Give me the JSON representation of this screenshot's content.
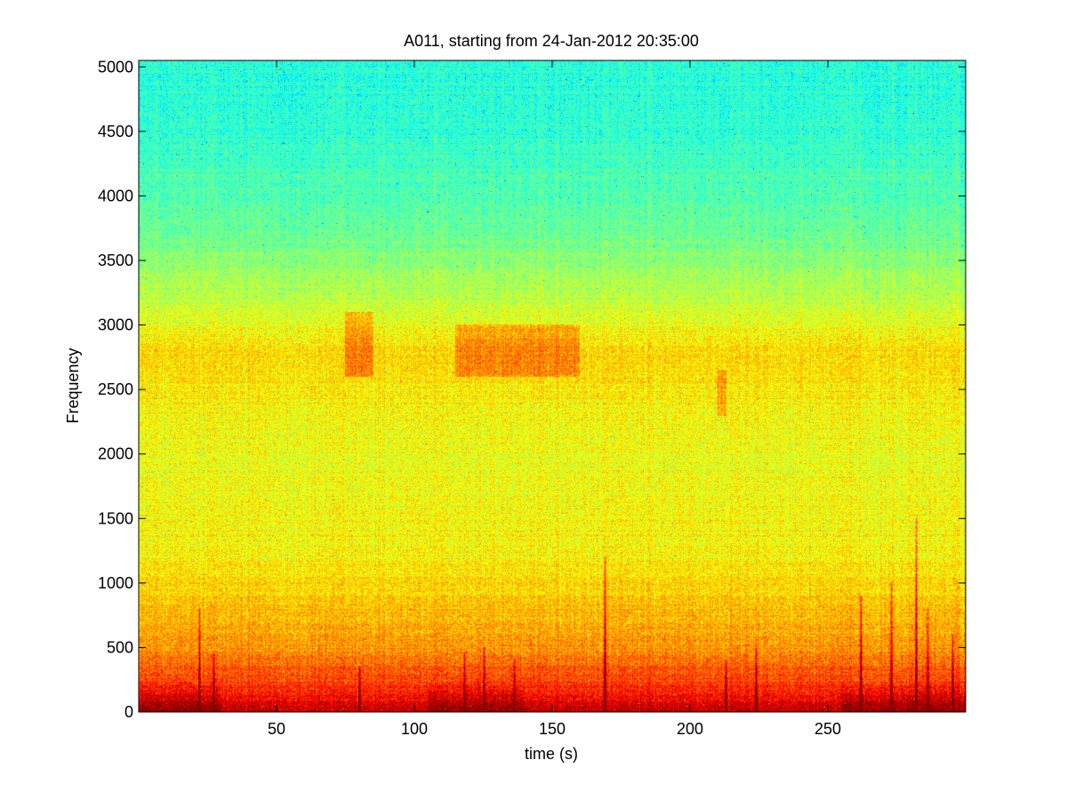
{
  "chart_data": {
    "type": "heatmap",
    "title": "A011, starting from 24-Jan-2012 20:35:00",
    "xlabel": "time (s)",
    "ylabel": "Frequency",
    "xlim": [
      0,
      300
    ],
    "ylim": [
      0,
      5050
    ],
    "xticks": [
      50,
      100,
      150,
      200,
      250
    ],
    "yticks": [
      0,
      500,
      1000,
      1500,
      2000,
      2500,
      3000,
      3500,
      4000,
      4500,
      5000
    ],
    "xtick_labels": [
      "50",
      "100",
      "150",
      "200",
      "250"
    ],
    "ytick_labels": [
      "0",
      "500",
      "1000",
      "1500",
      "2000",
      "2500",
      "3000",
      "3500",
      "4000",
      "4500",
      "5000"
    ],
    "grid": false,
    "colormap": "jet",
    "colorbar": false,
    "intensity_profile": [
      {
        "frequency": 0,
        "level": 0.95
      },
      {
        "frequency": 150,
        "level": 0.85
      },
      {
        "frequency": 450,
        "level": 0.74
      },
      {
        "frequency": 1200,
        "level": 0.63
      },
      {
        "frequency": 2000,
        "level": 0.61
      },
      {
        "frequency": 2800,
        "level": 0.66
      },
      {
        "frequency": 3200,
        "level": 0.56
      },
      {
        "frequency": 3700,
        "level": 0.48
      },
      {
        "frequency": 4500,
        "level": 0.42
      },
      {
        "frequency": 5050,
        "level": 0.41
      }
    ],
    "bright_regions": [
      {
        "time_range": [
          75,
          85
        ],
        "freq_range": [
          2600,
          3100
        ],
        "level": 0.72
      },
      {
        "time_range": [
          115,
          160
        ],
        "freq_range": [
          2600,
          3000
        ],
        "level": 0.71
      },
      {
        "time_range": [
          210,
          213
        ],
        "freq_range": [
          2300,
          2650
        ],
        "level": 0.7
      }
    ],
    "impulses": [
      {
        "time": 22,
        "top_frequency": 800,
        "level": 0.88
      },
      {
        "time": 27,
        "top_frequency": 450,
        "level": 0.86
      },
      {
        "time": 80,
        "top_frequency": 350,
        "level": 0.9
      },
      {
        "time": 118,
        "top_frequency": 450,
        "level": 0.87
      },
      {
        "time": 125,
        "top_frequency": 500,
        "level": 0.86
      },
      {
        "time": 136,
        "top_frequency": 400,
        "level": 0.85
      },
      {
        "time": 169,
        "top_frequency": 1200,
        "level": 0.9
      },
      {
        "time": 213,
        "top_frequency": 400,
        "level": 0.85
      },
      {
        "time": 224,
        "top_frequency": 500,
        "level": 0.87
      },
      {
        "time": 262,
        "top_frequency": 900,
        "level": 0.88
      },
      {
        "time": 273,
        "top_frequency": 1000,
        "level": 0.9
      },
      {
        "time": 282,
        "top_frequency": 1500,
        "level": 0.9
      },
      {
        "time": 286,
        "top_frequency": 800,
        "level": 0.88
      },
      {
        "time": 295,
        "top_frequency": 600,
        "level": 0.86
      }
    ],
    "dense_low_band": {
      "time_ranges": [
        [
          0,
          30
        ],
        [
          105,
          140
        ],
        [
          255,
          300
        ]
      ],
      "freq_range": [
        0,
        250
      ],
      "level": 0.93
    }
  }
}
